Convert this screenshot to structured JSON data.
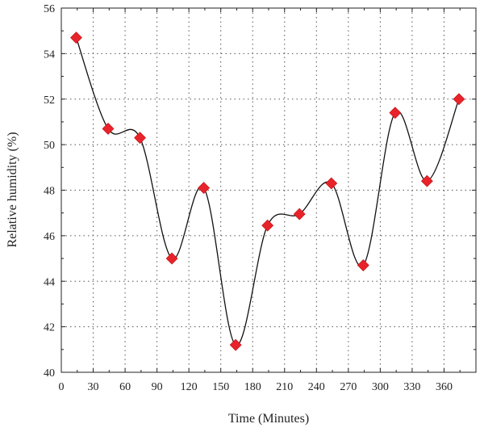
{
  "chart_data": {
    "type": "line",
    "xlabel": "Time (Minutes)",
    "ylabel": "Relative humidity (%)",
    "xlim": [
      0,
      390
    ],
    "ylim": [
      40,
      56
    ],
    "xticks": [
      0,
      30,
      60,
      90,
      120,
      150,
      180,
      210,
      240,
      270,
      300,
      330,
      360
    ],
    "yticks": [
      40,
      42,
      44,
      46,
      48,
      50,
      52,
      54,
      56
    ],
    "grid": true,
    "smooth": true,
    "series": [
      {
        "color": "#e8232a",
        "marker": "diamond",
        "x": [
          14,
          44,
          74,
          104,
          134,
          164,
          194,
          224,
          254,
          284,
          314,
          344,
          374
        ],
        "values": [
          54.7,
          50.7,
          50.3,
          45.0,
          48.1,
          41.2,
          46.45,
          46.95,
          48.3,
          44.7,
          51.4,
          48.4,
          52.0
        ]
      }
    ]
  }
}
